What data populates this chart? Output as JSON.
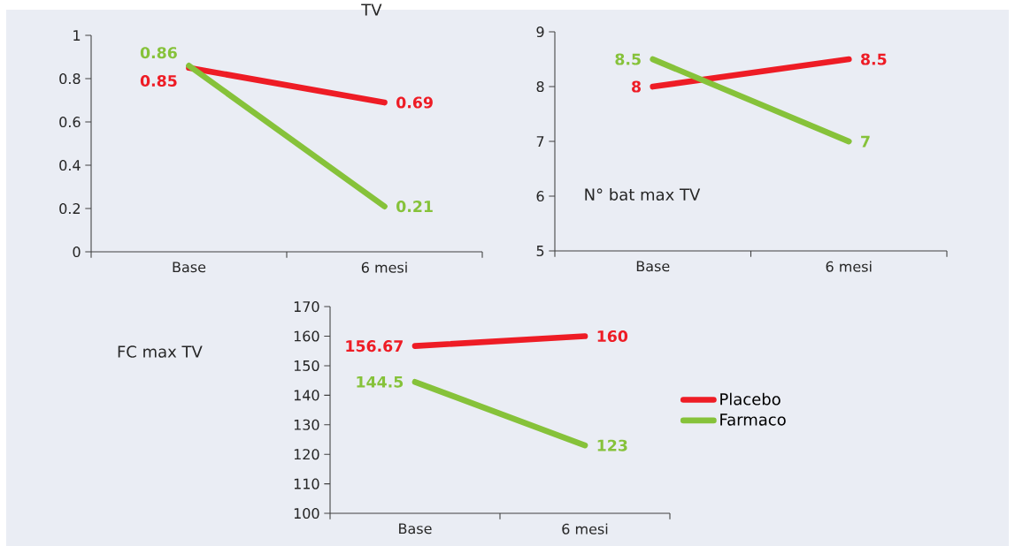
{
  "chart_data": [
    {
      "type": "line",
      "title": "TV",
      "categories": [
        "Base",
        "6 mesi"
      ],
      "ylim": [
        0,
        1
      ],
      "yticks": [
        0,
        0.2,
        0.4,
        0.6,
        0.8,
        1
      ],
      "data_labels": true,
      "series": [
        {
          "color": "#ee1c25",
          "values": [
            0.85,
            0.69
          ]
        },
        {
          "color": "#86c23a",
          "values": [
            0.86,
            0.21
          ]
        }
      ]
    },
    {
      "type": "line",
      "title": "N° bat max TV",
      "categories": [
        "Base",
        "6 mesi"
      ],
      "ylim": [
        5,
        9
      ],
      "yticks": [
        5,
        6,
        7,
        8,
        9
      ],
      "data_labels": true,
      "series": [
        {
          "color": "#ee1c25",
          "values": [
            8,
            8.5
          ]
        },
        {
          "color": "#86c23a",
          "values": [
            8.5,
            7
          ]
        }
      ]
    },
    {
      "type": "line",
      "title": "FC max TV",
      "categories": [
        "Base",
        "6 mesi"
      ],
      "ylim": [
        100,
        170
      ],
      "yticks": [
        100,
        110,
        120,
        130,
        140,
        150,
        160,
        170
      ],
      "data_labels": true,
      "legend": "right",
      "series": [
        {
          "name": "Placebo",
          "color": "#ee1c25",
          "values": [
            156.67,
            160
          ]
        },
        {
          "name": "Farmaco",
          "color": "#86c23a",
          "values": [
            144.5,
            123
          ]
        }
      ]
    }
  ]
}
